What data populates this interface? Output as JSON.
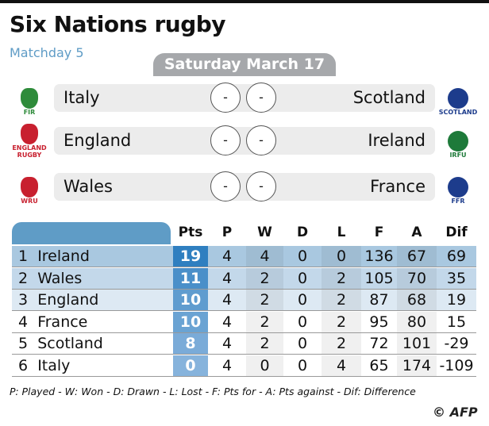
{
  "title": "Six Nations rugby",
  "subtitle": "Matchday 5",
  "date": "Saturday March 17",
  "matches": [
    {
      "home": "Italy",
      "away": "Scotland",
      "home_score": "-",
      "away_score": "-",
      "home_logo": "FIR",
      "away_logo": "SCOTLAND"
    },
    {
      "home": "England",
      "away": "Ireland",
      "home_score": "-",
      "away_score": "-",
      "home_logo": "ENGLAND RUGBY",
      "away_logo": "IRFU"
    },
    {
      "home": "Wales",
      "away": "France",
      "home_score": "-",
      "away_score": "-",
      "home_logo": "WRU",
      "away_logo": "FFR"
    }
  ],
  "table": {
    "headers": [
      "Pts",
      "P",
      "W",
      "D",
      "L",
      "F",
      "A",
      "Dif"
    ],
    "rows": [
      {
        "rank": "1",
        "team": "Ireland",
        "cells": [
          "19",
          "4",
          "4",
          "0",
          "0",
          "136",
          "67",
          "69"
        ]
      },
      {
        "rank": "2",
        "team": "Wales",
        "cells": [
          "11",
          "4",
          "2",
          "0",
          "2",
          "105",
          "70",
          "35"
        ]
      },
      {
        "rank": "3",
        "team": "England",
        "cells": [
          "10",
          "4",
          "2",
          "0",
          "2",
          "87",
          "68",
          "19"
        ]
      },
      {
        "rank": "4",
        "team": "France",
        "cells": [
          "10",
          "4",
          "2",
          "0",
          "2",
          "95",
          "80",
          "15"
        ]
      },
      {
        "rank": "5",
        "team": "Scotland",
        "cells": [
          "8",
          "4",
          "2",
          "0",
          "2",
          "72",
          "101",
          "-29"
        ]
      },
      {
        "rank": "6",
        "team": "Italy",
        "cells": [
          "0",
          "4",
          "0",
          "0",
          "4",
          "65",
          "174",
          "-109"
        ]
      }
    ]
  },
  "legend": "P: Played - W: Won - D: Drawn - L: Lost - F: Pts for - A: Pts against - Dif: Difference",
  "credit": "© AFP",
  "colors": {
    "accent": "#5f9cc6",
    "pts": [
      "#2f7fc0",
      "#4a8fc9",
      "#5f9ccf",
      "#6aa3d3",
      "#7aabd8",
      "#86b3dc"
    ],
    "row_bg": [
      "#a9c8e0",
      "#c3d8ea",
      "#dde9f3",
      "#ffffff",
      "#ffffff",
      "#ffffff"
    ]
  }
}
